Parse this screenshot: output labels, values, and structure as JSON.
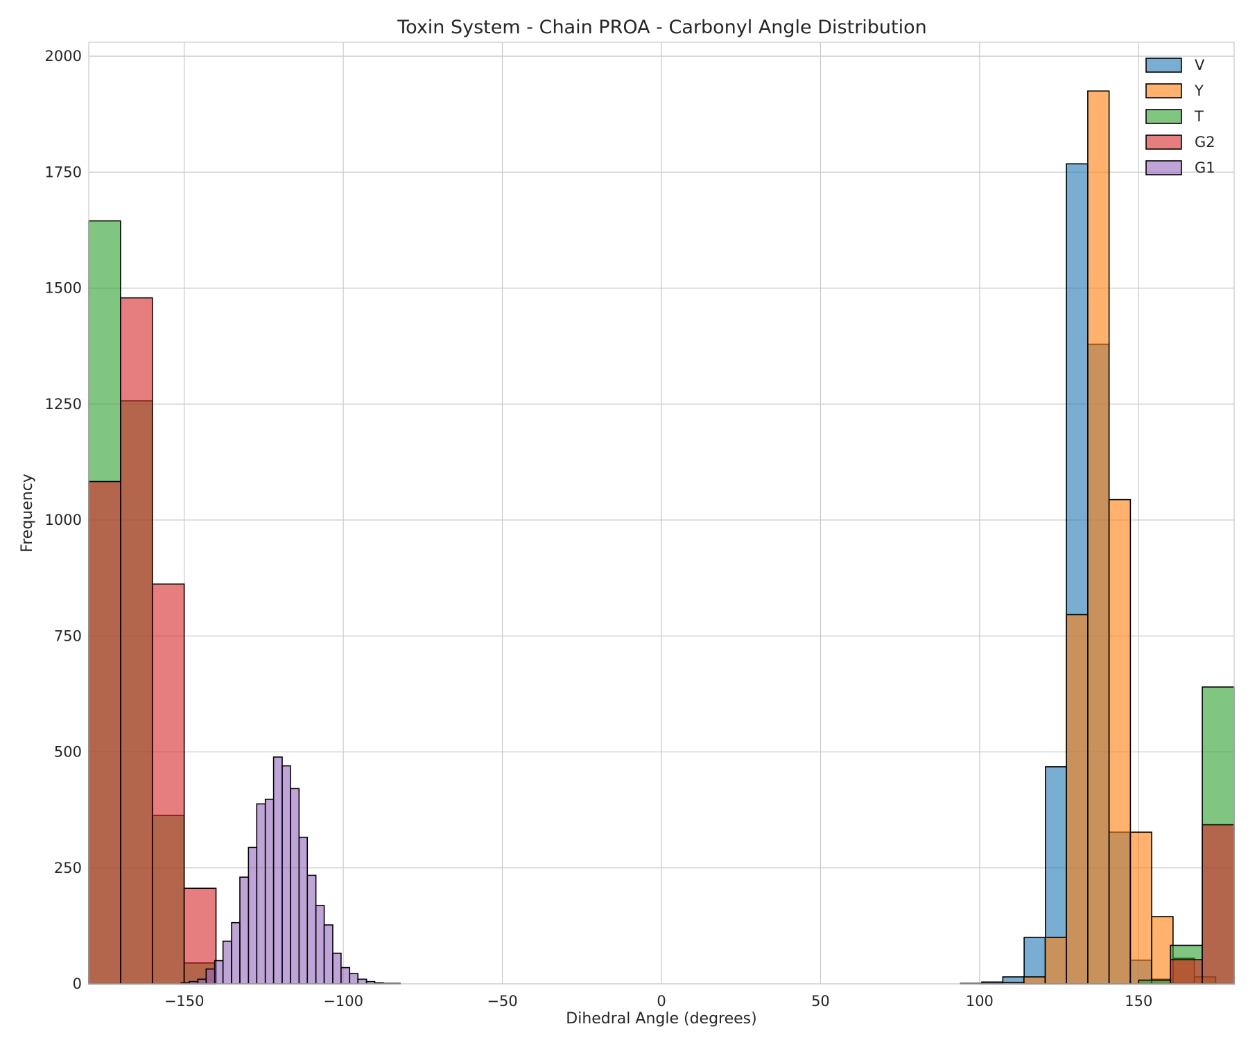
{
  "chart_data": {
    "type": "bar",
    "title": "Toxin System - Chain PROA - Carbonyl Angle Distribution",
    "xlabel": "Dihedral Angle (degrees)",
    "ylabel": "Frequency",
    "xlim": [
      -180,
      180
    ],
    "ylim": [
      0,
      2030
    ],
    "xticks": [
      -150,
      -100,
      -50,
      0,
      50,
      100,
      150
    ],
    "xtick_labels": [
      "−150",
      "−100",
      "−50",
      "0",
      "50",
      "100",
      "150"
    ],
    "yticks": [
      0,
      250,
      500,
      750,
      1000,
      1250,
      1500,
      1750,
      2000
    ],
    "ytick_labels": [
      "0",
      "250",
      "500",
      "750",
      "1000",
      "1250",
      "1500",
      "1750",
      "2000"
    ],
    "grid": true,
    "legend_position": "top-right",
    "series": [
      {
        "name": "V",
        "color": "#1f77b4",
        "bin_edges": [
          94,
          100.7,
          107.3,
          114,
          120.7,
          127.3,
          134,
          140.7,
          147.3,
          154,
          160.7,
          167.3
        ],
        "counts": [
          1,
          4,
          15,
          100,
          468,
          1768,
          1379,
          327,
          51,
          10,
          1
        ]
      },
      {
        "name": "Y",
        "color": "#ff7f0e",
        "bin_edges": [
          100.5,
          107.2,
          113.9,
          120.6,
          127.3,
          134,
          140.7,
          147.4,
          154.1,
          160.8,
          167.5,
          174.2
        ],
        "counts": [
          1,
          3,
          15,
          100,
          796,
          1925,
          1044,
          327,
          145,
          55,
          15
        ]
      },
      {
        "name": "T",
        "color": "#2ca02c",
        "bin_edges": [
          -180,
          -170,
          -160,
          -150,
          -140,
          150,
          160,
          170,
          180
        ],
        "counts": [
          1645,
          1257,
          363,
          45,
          null,
          8,
          83,
          640
        ]
      },
      {
        "name": "G2",
        "color": "#d62728",
        "bin_edges": [
          -180,
          -170,
          -160,
          -150,
          -140,
          160,
          170,
          180
        ],
        "counts": [
          1083,
          1479,
          862,
          206,
          null,
          52,
          343
        ]
      },
      {
        "name": "G1",
        "color": "#9467bd",
        "bin_edges": [
          -151,
          -148.4,
          -145.7,
          -143.1,
          -140.4,
          -137.8,
          -135.1,
          -132.5,
          -129.8,
          -127.2,
          -124.5,
          -121.9,
          -119.2,
          -116.6,
          -113.9,
          -111.3,
          -108.6,
          -106,
          -103.3,
          -100.7,
          -98,
          -95.4,
          -92.7,
          -90.1,
          -87.4,
          -84.8,
          -82.1
        ],
        "counts": [
          2,
          5,
          10,
          32,
          50,
          92,
          132,
          230,
          294,
          388,
          398,
          489,
          470,
          421,
          316,
          234,
          169,
          127,
          66,
          35,
          22,
          10,
          5,
          2,
          1,
          1
        ]
      }
    ]
  }
}
